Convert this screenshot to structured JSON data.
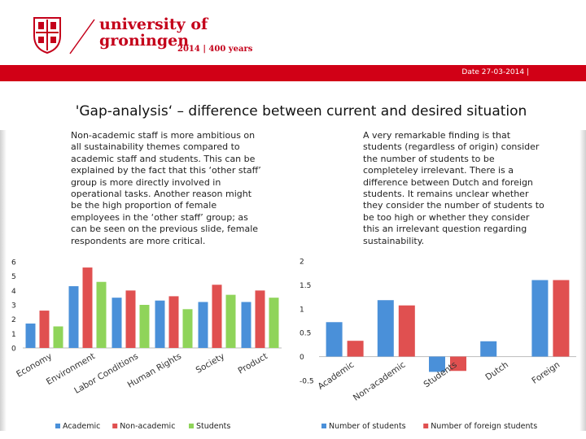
{
  "header": {
    "university_line1": "university of",
    "university_line2": "groningen",
    "years": "2014 | 400 years",
    "date": "Date 27-03-2014 |"
  },
  "slide": {
    "title": "'Gap-analysis‘ – difference between current and desired situation",
    "para_left": "Non-academic staff is more ambitious on\nall sustainability themes compared to\nacademic staff and students. This can be\nexplained by the fact that this ‘other staff’\ngroup is more directly involved in\noperational tasks. Another reason might\nbe the high proportion of female\nemployees in the ‘other staff’ group; as\ncan be seen on the previous slide, female\nrespondents are more critical.",
    "para_right": "A very remarkable finding is that\nstudents (regardless of origin) consider\nthe number of students to be\ncompleteley irrelevant. There is a\ndifference between Dutch and foreign\nstudents. It remains unclear whether\nthey consider the number of students to\nbe too high or whether they consider\nthis an irrelevant question regarding\nsustainability."
  },
  "colors": {
    "brand_red": "#d10016",
    "academic": "#4a90d9",
    "non_academic": "#e05050",
    "students": "#8fd45a",
    "number_of_students": "#4a90d9",
    "number_of_foreign_students": "#e05050"
  },
  "chart_data": [
    {
      "type": "bar",
      "categories": [
        "Economy",
        "Environment",
        "Labor Conditions",
        "Human Rights",
        "Society",
        "Product"
      ],
      "series": [
        {
          "name": "Academic",
          "values": [
            1.7,
            4.3,
            3.5,
            3.3,
            3.2,
            3.2
          ]
        },
        {
          "name": "Non-academic",
          "values": [
            2.6,
            5.6,
            4.0,
            3.6,
            4.4,
            4.0
          ]
        },
        {
          "name": "Students",
          "values": [
            1.5,
            4.6,
            3.0,
            2.7,
            3.7,
            3.5
          ]
        }
      ],
      "yticks": [
        "0",
        "1",
        "2",
        "3",
        "4",
        "5",
        "6"
      ],
      "ylim": [
        0,
        6
      ],
      "legend": "bottom"
    },
    {
      "type": "bar",
      "categories": [
        "Academic",
        "Non-academic",
        "Students",
        "Dutch",
        "Foreign"
      ],
      "series": [
        {
          "name": "Number of students",
          "values": [
            0.72,
            1.18,
            -0.32,
            0.32,
            1.6
          ]
        },
        {
          "name": "Number of foreign students",
          "values": [
            0.33,
            1.07,
            -0.3,
            null,
            1.6
          ]
        }
      ],
      "yticks": [
        "-0.5",
        "0",
        "0.5",
        "1",
        "1.5",
        "2"
      ],
      "ylim": [
        -0.5,
        2
      ],
      "legend": "bottom"
    }
  ]
}
